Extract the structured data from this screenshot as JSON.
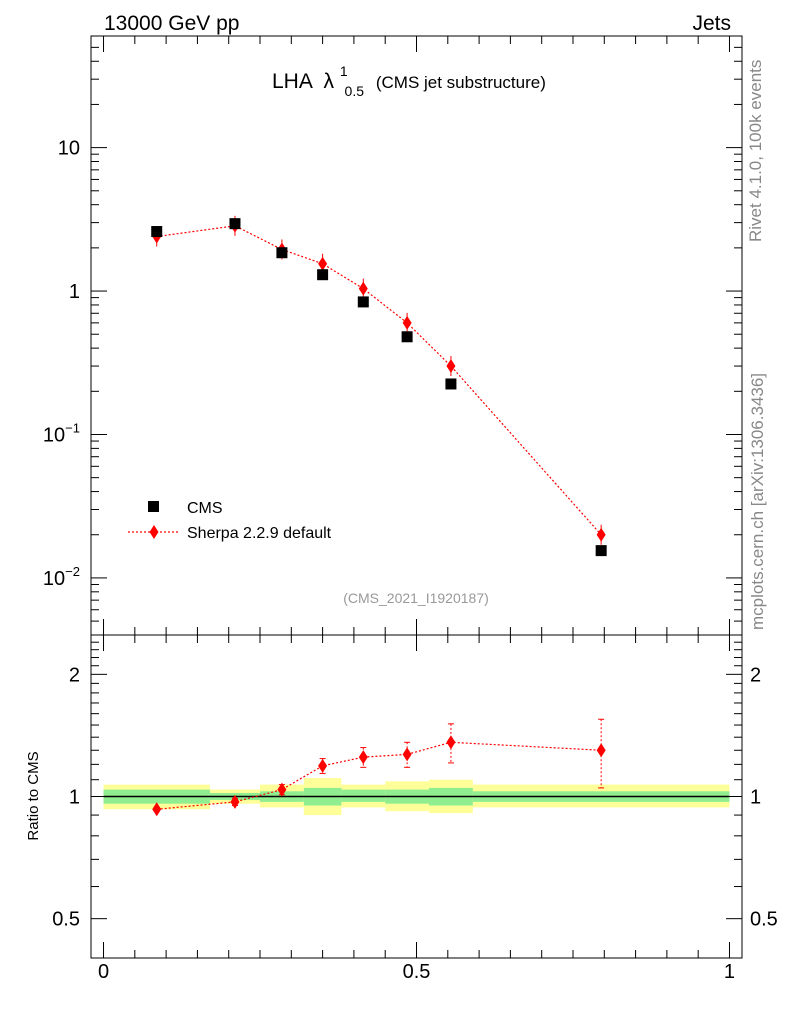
{
  "header": {
    "energy_label": "13000 GeV pp",
    "category_label": "Jets"
  },
  "title": {
    "main": "LHA",
    "symbol": "λ",
    "superscript": "1",
    "subscript": "0.5",
    "suffix": "(CMS jet substructure)"
  },
  "side_labels": {
    "rivet": "Rivet 4.1.0,  100k events",
    "mcplots": "mcplots.cern.ch [arXiv:1306.3436]"
  },
  "analysis_id": "(CMS_2021_I1920187)",
  "legend": {
    "data_label": "CMS",
    "mc_label": "Sherpa 2.2.9 default"
  },
  "colors": {
    "data": "#000000",
    "mc": "#ff0000",
    "band_outer": "#ffff99",
    "band_inner": "#90ee90",
    "side_text": "#888888"
  },
  "chart_data": {
    "type": "scatter",
    "x": [
      0.085,
      0.21,
      0.285,
      0.35,
      0.415,
      0.485,
      0.555,
      0.795
    ],
    "bin_edges": [
      0.0,
      0.17,
      0.25,
      0.32,
      0.38,
      0.45,
      0.52,
      0.59,
      1.0
    ],
    "series": [
      {
        "name": "CMS",
        "values": [
          2.6,
          2.95,
          1.85,
          1.3,
          0.84,
          0.48,
          0.225,
          0.0155
        ],
        "band_outer": [
          [
            0.93,
            1.07
          ],
          [
            0.96,
            1.04
          ],
          [
            0.94,
            1.07
          ],
          [
            0.9,
            1.11
          ],
          [
            0.94,
            1.07
          ],
          [
            0.92,
            1.09
          ],
          [
            0.91,
            1.1
          ],
          [
            0.94,
            1.07
          ]
        ],
        "band_inner": [
          [
            0.96,
            1.04
          ],
          [
            0.98,
            1.02
          ],
          [
            0.97,
            1.03
          ],
          [
            0.95,
            1.05
          ],
          [
            0.97,
            1.04
          ],
          [
            0.96,
            1.04
          ],
          [
            0.95,
            1.05
          ],
          [
            0.97,
            1.03
          ]
        ]
      },
      {
        "name": "Sherpa 2.2.9 default",
        "values": [
          2.4,
          2.85,
          1.95,
          1.55,
          1.04,
          0.6,
          0.3,
          0.02
        ],
        "ratio": [
          0.93,
          0.97,
          1.04,
          1.19,
          1.25,
          1.27,
          1.36,
          1.3
        ],
        "ratio_err": [
          0.01,
          0.02,
          0.03,
          0.05,
          0.07,
          0.09,
          0.15,
          0.25
        ]
      }
    ],
    "top_panel": {
      "yscale": "log",
      "ylim": [
        0.004,
        60
      ],
      "yticks": [
        0.01,
        0.1,
        1,
        10
      ],
      "ytick_labels": [
        {
          "base": "10",
          "exp": "−2"
        },
        {
          "base": "10",
          "exp": "−1"
        },
        {
          "base": "1",
          "exp": ""
        },
        {
          "base": "10",
          "exp": ""
        }
      ]
    },
    "ratio_panel": {
      "ylabel": "Ratio to CMS",
      "yscale": "log",
      "ylim": [
        0.4,
        2.5
      ],
      "yticks": [
        0.5,
        1,
        2
      ],
      "ytick_labels": [
        "0.5",
        "1",
        "2"
      ]
    },
    "xlim": [
      -0.02,
      1.02
    ],
    "xticks": [
      0,
      0.5,
      1
    ],
    "xtick_labels": [
      "0",
      "0.5",
      "1"
    ],
    "legend_position": "lower-left"
  }
}
